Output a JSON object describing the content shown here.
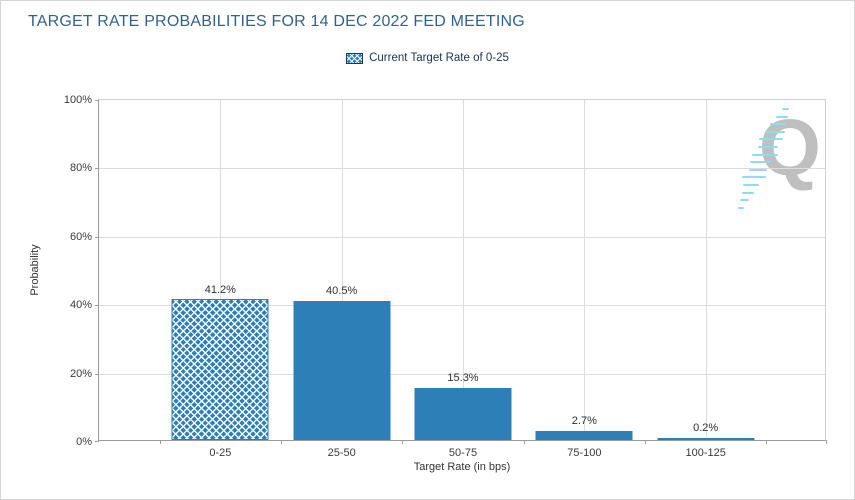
{
  "colors": {
    "bar": "#2d7fb8",
    "title": "#33618e",
    "watermark_letter": "#bfbfbf",
    "watermark_streak": "#8edcee"
  },
  "watermark": {
    "letter": "Q"
  },
  "chart_data": {
    "type": "bar",
    "title": "TARGET RATE PROBABILITIES FOR 14 DEC 2022 FED MEETING",
    "categories": [
      "0-25",
      "25-50",
      "50-75",
      "75-100",
      "100-125"
    ],
    "values": [
      41.2,
      40.5,
      15.3,
      2.7,
      0.2
    ],
    "value_labels": [
      "41.2%",
      "40.5%",
      "15.3%",
      "2.7%",
      "0.2%"
    ],
    "current_target_index": 0,
    "xlabel": "Target Rate (in bps)",
    "ylabel": "Probability",
    "ylim": [
      0,
      100
    ],
    "ytick_step": 20,
    "ytick_labels": [
      "0%",
      "20%",
      "40%",
      "60%",
      "80%",
      "100%"
    ],
    "legend": [
      "Current Target Rate of 0-25"
    ],
    "legend_position": "top-center",
    "grid": true
  }
}
